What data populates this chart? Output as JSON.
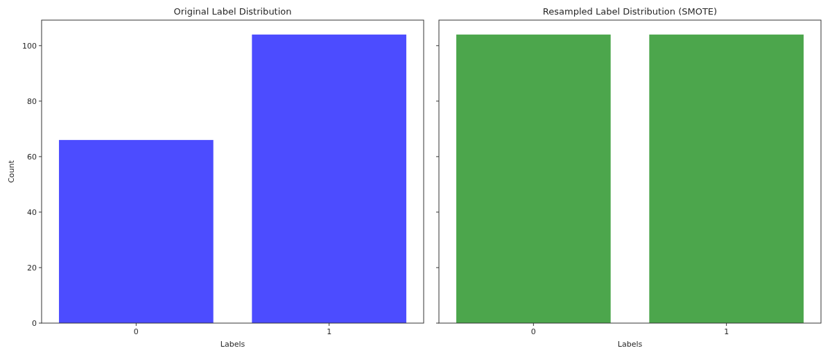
{
  "chart_data": [
    {
      "type": "bar",
      "title": "Original Label Distribution",
      "xlabel": "Labels",
      "ylabel": "Count",
      "categories": [
        "0",
        "1"
      ],
      "values": [
        66,
        104
      ],
      "color": "#4c4cff",
      "ylim": [
        0,
        109.2
      ],
      "yticks": [
        0,
        20,
        40,
        60,
        80,
        100
      ]
    },
    {
      "type": "bar",
      "title": "Resampled Label Distribution (SMOTE)",
      "xlabel": "Labels",
      "categories": [
        "0",
        "1"
      ],
      "values": [
        104,
        104
      ],
      "color": "#4ca64c",
      "ylim": [
        0,
        109.2
      ],
      "yticks": [
        0,
        20,
        40,
        60,
        80,
        100
      ],
      "tick_labels": "x"
    }
  ]
}
